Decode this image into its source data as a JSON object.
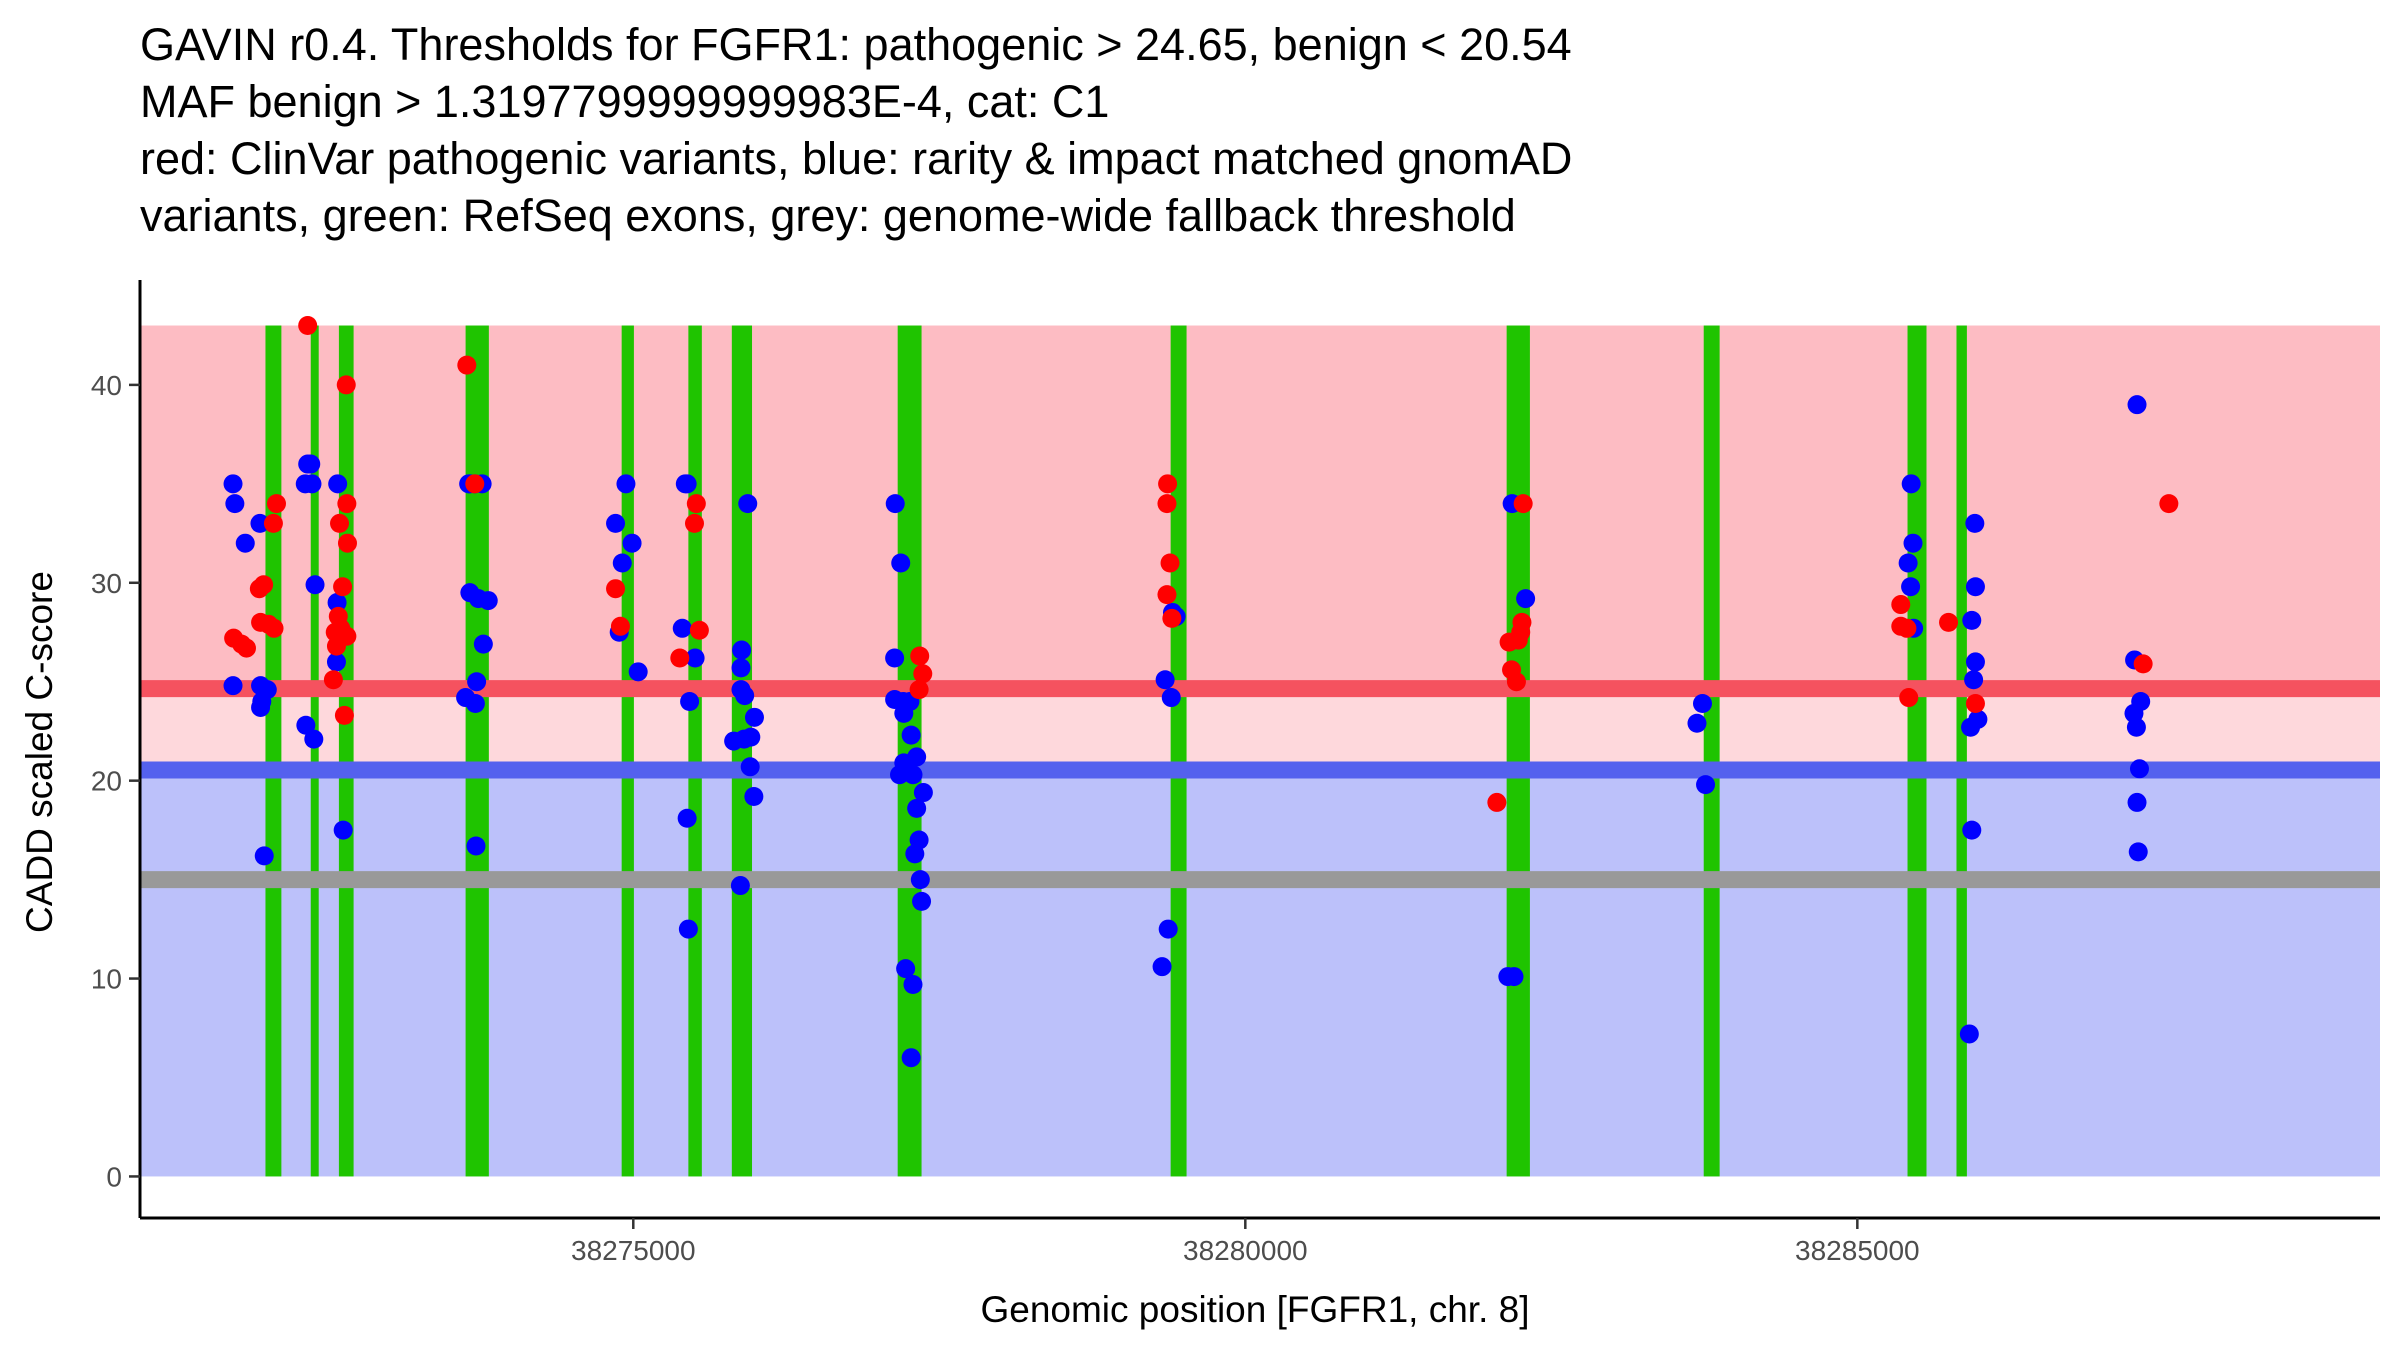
{
  "chart_data": {
    "type": "scatter",
    "title_lines": [
      "GAVIN r0.4. Thresholds for FGFR1: pathogenic > 24.65, benign < 20.54",
      "MAF benign > 1.3197799999999983E-4, cat: C1",
      "red: ClinVar pathogenic variants, blue: rarity & impact matched gnomAD",
      "variants, green: RefSeq exons, grey: genome-wide fallback threshold"
    ],
    "xlabel": "Genomic position [FGFR1, chr. 8]",
    "ylabel": "CADD scaled C-score",
    "xlim": [
      38270970,
      38289270
    ],
    "ylim": [
      -2.1,
      45.3
    ],
    "x_ticks": [
      38275000,
      38280000,
      38285000
    ],
    "x_tick_labels": [
      "38275000",
      "38280000",
      "38285000"
    ],
    "y_ticks": [
      0,
      10,
      20,
      30,
      40
    ],
    "y_tick_labels": [
      "0",
      "10",
      "20",
      "30",
      "40"
    ],
    "thresholds": {
      "pathogenic": 24.65,
      "benign": 20.54,
      "fallback": 15.0,
      "max_score": 43.0
    },
    "colors": {
      "pathogenic_band": "#fdbcc3",
      "middle_band": "#fed8dc",
      "benign_band": "#bcc1fa",
      "pathogenic_line": "#f5525f",
      "benign_line": "#5461ee",
      "fallback_line": "#999999",
      "exon": "#1fc400",
      "pathogenic_point": "#ff0000",
      "benign_point": "#0000ff"
    },
    "exons": [
      [
        38271995,
        38272125
      ],
      [
        38272365,
        38272430
      ],
      [
        38272595,
        38272715
      ],
      [
        38273630,
        38273820
      ],
      [
        38274905,
        38275005
      ],
      [
        38275450,
        38275560
      ],
      [
        38275805,
        38275970
      ],
      [
        38277160,
        38277355
      ],
      [
        38279390,
        38279520
      ],
      [
        38282135,
        38282325
      ],
      [
        38283745,
        38283875
      ],
      [
        38285410,
        38285565
      ],
      [
        38285810,
        38285895
      ]
    ],
    "series": [
      {
        "name": "ClinVar pathogenic variants",
        "color": "#ff0000",
        "points": [
          [
            38271735,
            27.2
          ],
          [
            38271800,
            26.9
          ],
          [
            38271840,
            26.7
          ],
          [
            38271945,
            29.7
          ],
          [
            38271980,
            29.9
          ],
          [
            38271955,
            28.0
          ],
          [
            38272020,
            27.9
          ],
          [
            38272065,
            27.7
          ],
          [
            38272060,
            33.0
          ],
          [
            38272085,
            34.0
          ],
          [
            38272340,
            43.0
          ],
          [
            38272565,
            27.5
          ],
          [
            38272575,
            26.8
          ],
          [
            38272550,
            25.1
          ],
          [
            38272610,
            27.7
          ],
          [
            38272590,
            28.3
          ],
          [
            38272600,
            33.0
          ],
          [
            38272625,
            29.8
          ],
          [
            38272660,
            27.3
          ],
          [
            38272640,
            23.3
          ],
          [
            38272665,
            32.0
          ],
          [
            38272660,
            34.0
          ],
          [
            38272655,
            40.0
          ],
          [
            38273640,
            41.0
          ],
          [
            38273705,
            35.0
          ],
          [
            38274855,
            29.7
          ],
          [
            38274895,
            27.8
          ],
          [
            38275380,
            26.2
          ],
          [
            38275540,
            27.6
          ],
          [
            38275515,
            34.0
          ],
          [
            38275500,
            33.0
          ],
          [
            38277340,
            26.3
          ],
          [
            38277365,
            25.4
          ],
          [
            38277335,
            24.6
          ],
          [
            38279365,
            35.0
          ],
          [
            38279360,
            34.0
          ],
          [
            38279385,
            31.0
          ],
          [
            38279360,
            29.4
          ],
          [
            38279400,
            28.2
          ],
          [
            38282055,
            18.9
          ],
          [
            38282155,
            27.0
          ],
          [
            38282175,
            25.6
          ],
          [
            38282215,
            25.0
          ],
          [
            38282250,
            27.5
          ],
          [
            38282230,
            27.1
          ],
          [
            38282260,
            28.0
          ],
          [
            38282270,
            34.0
          ],
          [
            38285355,
            28.9
          ],
          [
            38285355,
            27.8
          ],
          [
            38285405,
            27.7
          ],
          [
            38285420,
            24.2
          ],
          [
            38285745,
            28.0
          ],
          [
            38285965,
            23.9
          ],
          [
            38287335,
            25.9
          ],
          [
            38287545,
            34.0
          ]
        ]
      },
      {
        "name": "gnomAD rarity & impact matched variants",
        "color": "#0000ff",
        "points": [
          [
            38271730,
            35.0
          ],
          [
            38271745,
            34.0
          ],
          [
            38271830,
            32.0
          ],
          [
            38271730,
            24.8
          ],
          [
            38271950,
            33.0
          ],
          [
            38271955,
            24.8
          ],
          [
            38271965,
            24.0
          ],
          [
            38271955,
            23.7
          ],
          [
            38272010,
            24.6
          ],
          [
            38271985,
            16.2
          ],
          [
            38272340,
            36.0
          ],
          [
            38272365,
            36.0
          ],
          [
            38272320,
            35.0
          ],
          [
            38272375,
            35.0
          ],
          [
            38272400,
            29.9
          ],
          [
            38272325,
            22.8
          ],
          [
            38272390,
            22.1
          ],
          [
            38272585,
            35.0
          ],
          [
            38272580,
            29.0
          ],
          [
            38272575,
            26.0
          ],
          [
            38272630,
            17.5
          ],
          [
            38273655,
            35.0
          ],
          [
            38273665,
            35.0
          ],
          [
            38273705,
            35.0
          ],
          [
            38273765,
            35.0
          ],
          [
            38273665,
            29.5
          ],
          [
            38273735,
            29.2
          ],
          [
            38273815,
            29.1
          ],
          [
            38273775,
            26.9
          ],
          [
            38273720,
            25.0
          ],
          [
            38273630,
            24.2
          ],
          [
            38273710,
            23.9
          ],
          [
            38273715,
            16.7
          ],
          [
            38274940,
            35.0
          ],
          [
            38274855,
            33.0
          ],
          [
            38274910,
            31.0
          ],
          [
            38274990,
            32.0
          ],
          [
            38274885,
            27.5
          ],
          [
            38275040,
            25.5
          ],
          [
            38275425,
            35.0
          ],
          [
            38275440,
            35.0
          ],
          [
            38275400,
            27.7
          ],
          [
            38275505,
            26.2
          ],
          [
            38275460,
            24.0
          ],
          [
            38275440,
            18.1
          ],
          [
            38275450,
            12.5
          ],
          [
            38275935,
            34.0
          ],
          [
            38275885,
            26.6
          ],
          [
            38275880,
            25.7
          ],
          [
            38275880,
            24.6
          ],
          [
            38275910,
            24.3
          ],
          [
            38275990,
            23.2
          ],
          [
            38275905,
            22.1
          ],
          [
            38275820,
            22.0
          ],
          [
            38275960,
            22.2
          ],
          [
            38275955,
            20.7
          ],
          [
            38275985,
            19.2
          ],
          [
            38275875,
            14.7
          ],
          [
            38277140,
            34.0
          ],
          [
            38277185,
            31.0
          ],
          [
            38277135,
            26.2
          ],
          [
            38277135,
            24.1
          ],
          [
            38277205,
            24.0
          ],
          [
            38277260,
            24.0
          ],
          [
            38277210,
            23.4
          ],
          [
            38277315,
            21.2
          ],
          [
            38277210,
            20.9
          ],
          [
            38277175,
            20.3
          ],
          [
            38277285,
            20.3
          ],
          [
            38277270,
            22.3
          ],
          [
            38277370,
            19.4
          ],
          [
            38277315,
            18.6
          ],
          [
            38277335,
            17.0
          ],
          [
            38277300,
            16.3
          ],
          [
            38277345,
            15.0
          ],
          [
            38277355,
            13.9
          ],
          [
            38277225,
            10.5
          ],
          [
            38277285,
            9.7
          ],
          [
            38277270,
            6.0
          ],
          [
            38279405,
            28.5
          ],
          [
            38279435,
            28.3
          ],
          [
            38279345,
            25.1
          ],
          [
            38279395,
            24.2
          ],
          [
            38279370,
            12.5
          ],
          [
            38279320,
            10.6
          ],
          [
            38282180,
            34.0
          ],
          [
            38282290,
            29.2
          ],
          [
            38282145,
            10.1
          ],
          [
            38282195,
            10.1
          ],
          [
            38283690,
            22.9
          ],
          [
            38283735,
            23.9
          ],
          [
            38283760,
            19.8
          ],
          [
            38285440,
            35.0
          ],
          [
            38285455,
            32.0
          ],
          [
            38285415,
            31.0
          ],
          [
            38285435,
            29.8
          ],
          [
            38285460,
            27.7
          ],
          [
            38285960,
            33.0
          ],
          [
            38285965,
            29.8
          ],
          [
            38285935,
            28.1
          ],
          [
            38285965,
            26.0
          ],
          [
            38285950,
            25.1
          ],
          [
            38285985,
            23.1
          ],
          [
            38285925,
            22.7
          ],
          [
            38285935,
            17.5
          ],
          [
            38285915,
            7.2
          ],
          [
            38287285,
            39.0
          ],
          [
            38287265,
            26.1
          ],
          [
            38287315,
            24.0
          ],
          [
            38287260,
            23.4
          ],
          [
            38287280,
            22.7
          ],
          [
            38287305,
            20.6
          ],
          [
            38287285,
            18.9
          ],
          [
            38287295,
            16.4
          ]
        ]
      }
    ]
  }
}
